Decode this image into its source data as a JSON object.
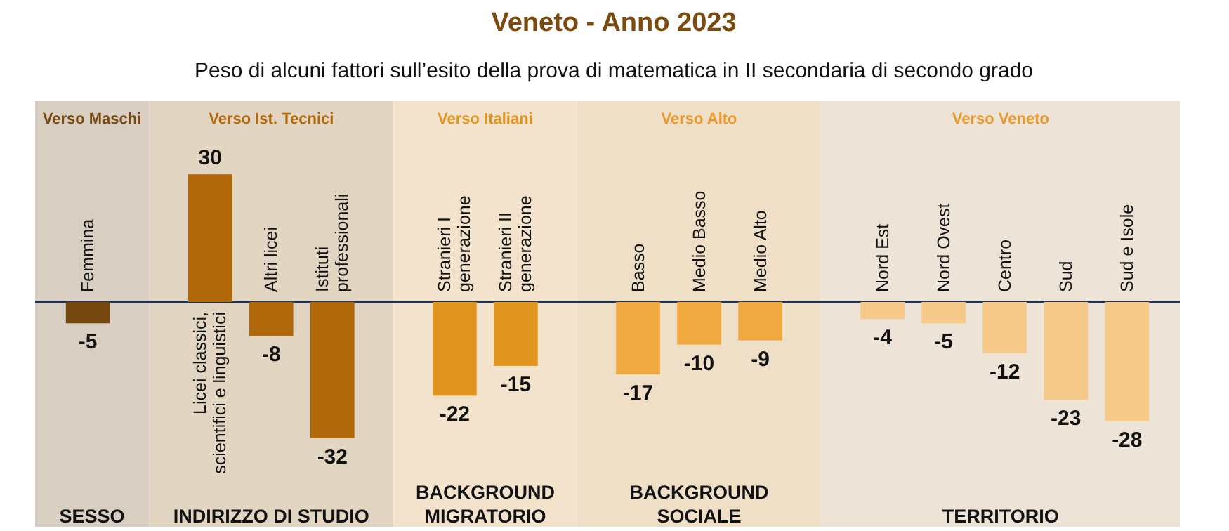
{
  "chart_data": {
    "type": "bar",
    "title": "Veneto - Anno 2023",
    "subtitle": "Peso di alcuni fattori sull’esito della prova di matematica in II secondaria di secondo grado",
    "categories": [
      "Femmina",
      "Licei classici,\nscientifici e linguistici",
      "Altri licei",
      "Istituti\nprofessionali",
      "Stranieri I\ngenerazione",
      "Stranieri II\ngenerazione",
      "Basso",
      "Medio Basso",
      "Medio Alto",
      "Nord Est",
      "Nord Ovest",
      "Centro",
      "Sud",
      "Sud e Isole"
    ],
    "values": [
      -5,
      30,
      -8,
      -32,
      -22,
      -15,
      -17,
      -10,
      -9,
      -4,
      -5,
      -12,
      -23,
      -28
    ],
    "colors": [
      "#76480f",
      "#b0680a",
      "#b0680a",
      "#b0680a",
      "#e0951f",
      "#e0951f",
      "#f0a840",
      "#f0a840",
      "#f0a840",
      "#f6c988",
      "#f6c988",
      "#f6c988",
      "#f6c988",
      "#f6c988"
    ],
    "data_labels": true,
    "annotations": [
      "Verso Maschi",
      "Verso Ist. Tecnici",
      "Verso Italiani",
      "Verso Alto",
      "Verso Veneto",
      "SESSO",
      "INDIRIZZO DI STUDIO",
      "BACKGROUND\nMIGRATORIO",
      "BACKGROUND\nSOCIALE",
      "TERRITORIO"
    ]
  }
}
